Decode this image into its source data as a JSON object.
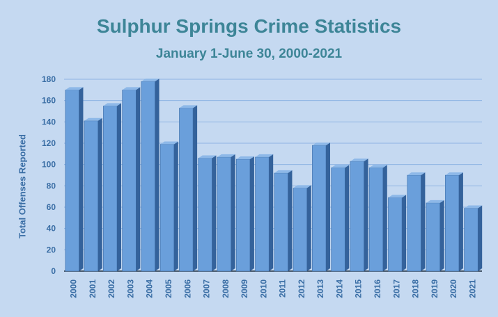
{
  "chart_data": {
    "type": "bar",
    "title": "Sulphur Springs Crime Statistics",
    "subtitle": "January 1-June 30, 2000-2021",
    "ylabel": "Total Offenses Reported",
    "xlabel": "",
    "ylim": [
      0,
      180
    ],
    "yticks": [
      0,
      20,
      40,
      60,
      80,
      100,
      120,
      140,
      160,
      180
    ],
    "grid": true,
    "categories": [
      "2000",
      "2001",
      "2002",
      "2003",
      "2004",
      "2005",
      "2006",
      "2007",
      "2008",
      "2009",
      "2010",
      "2011",
      "2012",
      "2013",
      "2014",
      "2015",
      "2016",
      "2017",
      "2018",
      "2019",
      "2020",
      "2021"
    ],
    "values": [
      170,
      141,
      155,
      170,
      178,
      119,
      153,
      106,
      107,
      105,
      107,
      92,
      78,
      118,
      97,
      103,
      97,
      69,
      90,
      64,
      90,
      59
    ],
    "colors": {
      "bar_front": "#6a9fdb",
      "bar_side": "#34629b",
      "bar_top": "#8db8e8",
      "grid": "#8eb4e3",
      "tick": "#3a6ea5",
      "title": "#3d8597"
    }
  }
}
